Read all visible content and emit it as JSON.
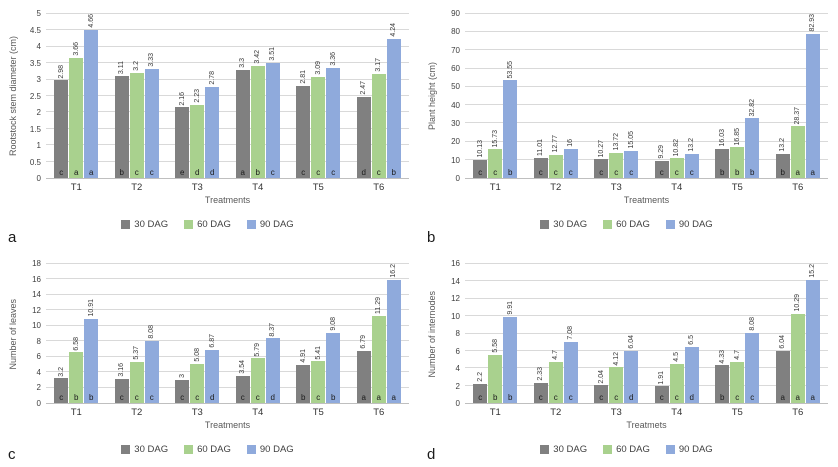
{
  "colors": {
    "series_30_dag": "#808080",
    "series_60_dag": "#a9d18e",
    "series_90_dag": "#8faadc",
    "gridline": "#d9d9d9",
    "axis_line": "#bfbfbf",
    "background": "#ffffff"
  },
  "chart_data": [
    {
      "type": "bar",
      "panel_label": "a",
      "ylabel": "Rootstock stem diameter (cm)",
      "xlabel": "Treatments",
      "categories": [
        "T1",
        "T2",
        "T3",
        "T4",
        "T5",
        "T6"
      ],
      "ylim": [
        0,
        5
      ],
      "yticks": [
        "0",
        "0.5",
        "1",
        "1.5",
        "2",
        "2.5",
        "3",
        "3.5",
        "4",
        "4.5",
        "5"
      ],
      "grid": true,
      "legend_position": "bottom",
      "series": [
        {
          "name": "30 DAG",
          "color": "#808080",
          "values": [
            2.98,
            3.11,
            2.16,
            3.3,
            2.81,
            2.47
          ],
          "labels": [
            "2.98",
            "3.11",
            "2.16",
            "3.3",
            "2.81",
            "2.47"
          ],
          "letters": [
            "c",
            "b",
            "e",
            "a",
            "c",
            "d"
          ]
        },
        {
          "name": "60 DAG",
          "color": "#a9d18e",
          "values": [
            3.66,
            3.2,
            2.23,
            3.42,
            3.09,
            3.17
          ],
          "labels": [
            "3.66",
            "3.2",
            "2.23",
            "3.42",
            "3.09",
            "3.17"
          ],
          "letters": [
            "a",
            "c",
            "d",
            "b",
            "c",
            "c"
          ]
        },
        {
          "name": "90 DAG",
          "color": "#8faadc",
          "values": [
            4.66,
            3.33,
            2.78,
            3.51,
            3.36,
            4.24
          ],
          "labels": [
            "4.66",
            "3.33",
            "2.78",
            "3.51",
            "3.36",
            "4.24"
          ],
          "letters": [
            "a",
            "c",
            "d",
            "c",
            "c",
            "b"
          ]
        }
      ]
    },
    {
      "type": "bar",
      "panel_label": "b",
      "ylabel": "Plant height (cm)",
      "xlabel": "Treatments",
      "categories": [
        "T1",
        "T2",
        "T3",
        "T4",
        "T5",
        "T6"
      ],
      "ylim": [
        0,
        90
      ],
      "yticks": [
        "0",
        "10",
        "20",
        "30",
        "40",
        "50",
        "60",
        "70",
        "80",
        "90"
      ],
      "grid": true,
      "legend_position": "bottom",
      "series": [
        {
          "name": "30 DAG",
          "color": "#808080",
          "values": [
            10.13,
            11.01,
            10.27,
            9.29,
            16.03,
            13.2
          ],
          "labels": [
            "10.13",
            "11.01",
            "10.27",
            "9.29",
            "16.03",
            "13.2"
          ],
          "letters": [
            "c",
            "c",
            "c",
            "c",
            "b",
            "b"
          ]
        },
        {
          "name": "60 DAG",
          "color": "#a9d18e",
          "values": [
            15.73,
            12.77,
            13.72,
            10.82,
            16.85,
            28.37
          ],
          "labels": [
            "15.73",
            "12.77",
            "13.72",
            "10.82",
            "16.85",
            "28.37"
          ],
          "letters": [
            "c",
            "c",
            "c",
            "c",
            "b",
            "a"
          ]
        },
        {
          "name": "90 DAG",
          "color": "#8faadc",
          "values": [
            53.55,
            16,
            15.05,
            13.2,
            32.82,
            82.93
          ],
          "labels": [
            "53.55",
            "16",
            "15.05",
            "13.2",
            "32.82",
            "82.93"
          ],
          "letters": [
            "b",
            "c",
            "c",
            "c",
            "b",
            "a"
          ]
        }
      ]
    },
    {
      "type": "bar",
      "panel_label": "c",
      "ylabel": "Number of leaves",
      "xlabel": "Treatments",
      "categories": [
        "T1",
        "T2",
        "T3",
        "T4",
        "T5",
        "T6"
      ],
      "ylim": [
        0,
        18
      ],
      "yticks": [
        "0",
        "2",
        "4",
        "6",
        "8",
        "10",
        "12",
        "14",
        "16",
        "18"
      ],
      "grid": true,
      "legend_position": "bottom",
      "series": [
        {
          "name": "30 DAG",
          "color": "#808080",
          "values": [
            3.2,
            3.16,
            3,
            3.54,
            4.91,
            6.79
          ],
          "labels": [
            "3.2",
            "3.16",
            "3",
            "3.54",
            "4.91",
            "6.79"
          ],
          "letters": [
            "c",
            "c",
            "c",
            "c",
            "b",
            "a"
          ]
        },
        {
          "name": "60 DAG",
          "color": "#a9d18e",
          "values": [
            6.58,
            5.37,
            5.08,
            5.79,
            5.41,
            11.29
          ],
          "labels": [
            "6.58",
            "5.37",
            "5.08",
            "5.79",
            "5.41",
            "11.29"
          ],
          "letters": [
            "b",
            "c",
            "c",
            "c",
            "c",
            "a"
          ]
        },
        {
          "name": "90 DAG",
          "color": "#8faadc",
          "values": [
            10.91,
            8.08,
            6.87,
            8.37,
            9.08,
            16.2
          ],
          "labels": [
            "10.91",
            "8.08",
            "6.87",
            "8.37",
            "9.08",
            "16.2"
          ],
          "letters": [
            "b",
            "c",
            "d",
            "d",
            "b",
            "a"
          ]
        }
      ]
    },
    {
      "type": "bar",
      "panel_label": "d",
      "ylabel": "Number of internodes",
      "xlabel": "Treatmets",
      "categories": [
        "T1",
        "T2",
        "T3",
        "T4",
        "T5",
        "T6"
      ],
      "ylim": [
        0,
        16
      ],
      "yticks": [
        "0",
        "2",
        "4",
        "6",
        "8",
        "10",
        "12",
        "14",
        "16"
      ],
      "grid": true,
      "legend_position": "bottom",
      "series": [
        {
          "name": "30 DAG",
          "color": "#808080",
          "values": [
            2.2,
            2.33,
            2.04,
            1.91,
            4.33,
            6.04
          ],
          "labels": [
            "2.2",
            "2.33",
            "2.04",
            "1.91",
            "4.33",
            "6.04"
          ],
          "letters": [
            "c",
            "c",
            "c",
            "c",
            "b",
            "a"
          ]
        },
        {
          "name": "60 DAG",
          "color": "#a9d18e",
          "values": [
            5.58,
            4.7,
            4.12,
            4.5,
            4.7,
            10.29
          ],
          "labels": [
            "5.58",
            "4.7",
            "4.12",
            "4.5",
            "4.7",
            "10.29"
          ],
          "letters": [
            "b",
            "c",
            "c",
            "c",
            "c",
            "a"
          ]
        },
        {
          "name": "90 DAG",
          "color": "#8faadc",
          "values": [
            9.91,
            7.08,
            6.04,
            6.5,
            8.08,
            15.2
          ],
          "labels": [
            "9.91",
            "7.08",
            "6.04",
            "6.5",
            "8.08",
            "15.2"
          ],
          "letters": [
            "b",
            "c",
            "d",
            "d",
            "c",
            "a"
          ]
        }
      ]
    }
  ]
}
